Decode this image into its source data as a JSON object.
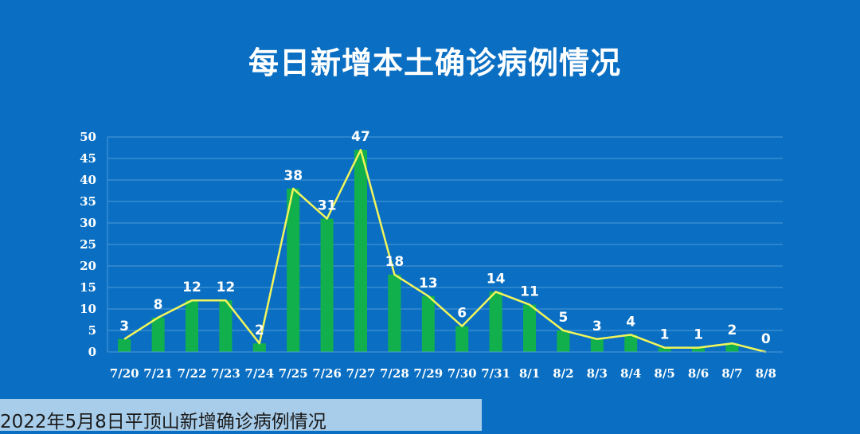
{
  "title": "每日新增本土确诊病例情况",
  "caption": "2022年5月8日平顶山新增确诊病例情况",
  "colors": {
    "background": "#0a6fc2",
    "bar": "#12b04c",
    "line": "#f2f55a",
    "grid": "#4d9ad6",
    "text": "#ffffff",
    "caption_bar": "#a8cdea"
  },
  "chart_data": {
    "type": "bar",
    "title": "每日新增本土确诊病例情况",
    "categories": [
      "7/20",
      "7/21",
      "7/22",
      "7/23",
      "7/24",
      "7/25",
      "7/26",
      "7/27",
      "7/28",
      "7/29",
      "7/30",
      "7/31",
      "8/1",
      "8/2",
      "8/3",
      "8/4",
      "8/5",
      "8/6",
      "8/7",
      "8/8"
    ],
    "values": [
      3,
      8,
      12,
      12,
      2,
      38,
      31,
      47,
      18,
      13,
      6,
      14,
      11,
      5,
      3,
      4,
      1,
      1,
      2,
      0
    ],
    "overlay": "line",
    "data_labels": true,
    "ylim": [
      0,
      50
    ],
    "yticks": [
      0,
      5,
      10,
      15,
      20,
      25,
      30,
      35,
      40,
      45,
      50
    ],
    "grid": true,
    "legend": "none"
  }
}
